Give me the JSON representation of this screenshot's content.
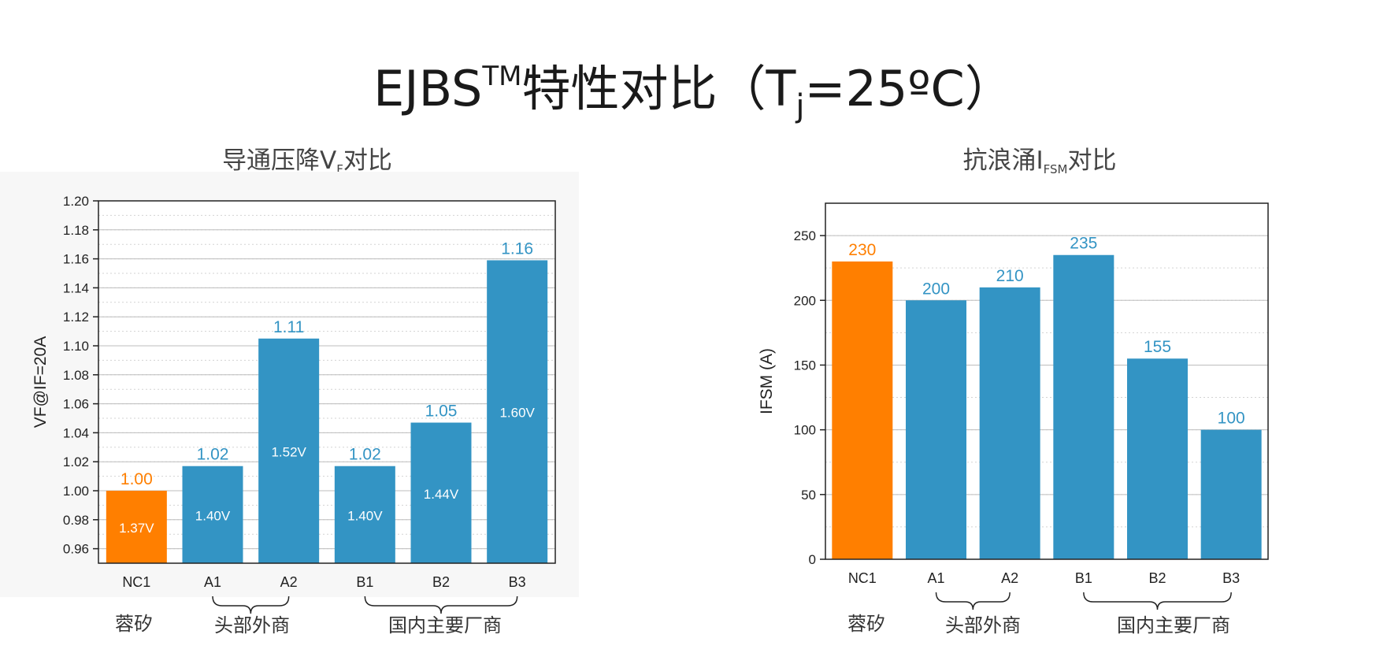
{
  "slide": {
    "title_main": "EJBS",
    "title_sup": "TM",
    "title_mid": "特性对比（T",
    "title_sub": "j",
    "title_end": "=25ºC）"
  },
  "colors": {
    "highlight": "#ff7f00",
    "bar": "#3394c4",
    "grid": "#bdbdbd",
    "left_bg": "#f7f7f7"
  },
  "chart_data": [
    {
      "type": "bar",
      "title": "导通压降VF对比",
      "title_main": "导通压降V",
      "title_sub": "F",
      "title_end": "对比",
      "ylabel": "VF@IF=20A",
      "ylim": [
        0.95,
        1.2
      ],
      "yticks": [
        "0.96",
        "0.98",
        "1.00",
        "1.02",
        "1.04",
        "1.06",
        "1.08",
        "1.10",
        "1.12",
        "1.14",
        "1.16",
        "1.18",
        "1.20"
      ],
      "categories": [
        "NC1",
        "A1",
        "A2",
        "B1",
        "B2",
        "B3"
      ],
      "values": [
        1.0,
        1.017,
        1.105,
        1.017,
        1.047,
        1.159
      ],
      "top_labels": [
        "1.00",
        "1.02",
        "1.11",
        "1.02",
        "1.05",
        "1.16"
      ],
      "inner_labels": [
        "1.37V",
        "1.40V",
        "1.52V",
        "1.40V",
        "1.44V",
        "1.60V"
      ],
      "highlight_index": 0,
      "grid": true,
      "groups": [
        {
          "label": "蓉矽",
          "categories": [
            "NC1"
          ],
          "brace": false
        },
        {
          "label": "头部外商",
          "categories": [
            "A1",
            "A2"
          ],
          "brace": true
        },
        {
          "label": "国内主要厂商",
          "categories": [
            "B1",
            "B2",
            "B3"
          ],
          "brace": true
        }
      ]
    },
    {
      "type": "bar",
      "title": "抗浪涌IFSM对比",
      "title_main": "抗浪涌I",
      "title_sub": "FSM",
      "title_end": "对比",
      "ylabel": "IFSM (A)",
      "ylim": [
        0,
        275
      ],
      "yticks": [
        "0",
        "50",
        "100",
        "150",
        "200",
        "250"
      ],
      "categories": [
        "NC1",
        "A1",
        "A2",
        "B1",
        "B2",
        "B3"
      ],
      "values": [
        230,
        200,
        210,
        235,
        155,
        100
      ],
      "top_labels": [
        "230",
        "200",
        "210",
        "235",
        "155",
        "100"
      ],
      "highlight_index": 0,
      "grid": true,
      "groups": [
        {
          "label": "蓉矽",
          "categories": [
            "NC1"
          ],
          "brace": false
        },
        {
          "label": "头部外商",
          "categories": [
            "A1",
            "A2"
          ],
          "brace": true
        },
        {
          "label": "国内主要厂商",
          "categories": [
            "B1",
            "B2",
            "B3"
          ],
          "brace": true
        }
      ]
    }
  ]
}
